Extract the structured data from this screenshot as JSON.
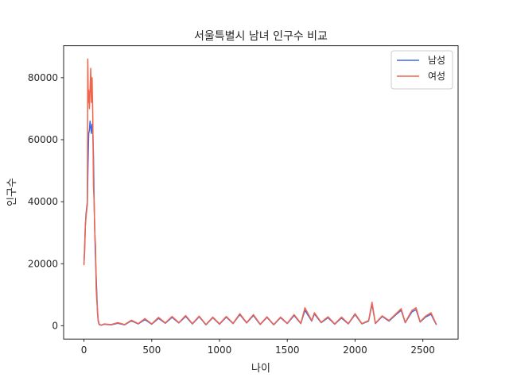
{
  "chart_data": {
    "type": "line",
    "title": "서울특별시 남녀 인구수 비교",
    "xlabel": "나이",
    "ylabel": "인구수",
    "xlim": [
      -150,
      2760
    ],
    "ylim": [
      -4300,
      90300
    ],
    "xticks": [
      0,
      500,
      1000,
      1500,
      2000,
      2500
    ],
    "yticks": [
      0,
      20000,
      40000,
      60000,
      80000
    ],
    "grid": false,
    "legend_position": "top-right",
    "series": [
      {
        "name": "남성",
        "color": "#4169e1",
        "points": [
          [
            0,
            20000
          ],
          [
            5,
            24000
          ],
          [
            10,
            32000
          ],
          [
            15,
            36000
          ],
          [
            20,
            38000
          ],
          [
            25,
            40000
          ],
          [
            30,
            52000
          ],
          [
            35,
            62000
          ],
          [
            40,
            63000
          ],
          [
            45,
            66000
          ],
          [
            50,
            64000
          ],
          [
            55,
            62000
          ],
          [
            60,
            65000
          ],
          [
            65,
            63000
          ],
          [
            70,
            55000
          ],
          [
            75,
            40000
          ],
          [
            80,
            30000
          ],
          [
            85,
            22000
          ],
          [
            90,
            16000
          ],
          [
            95,
            10000
          ],
          [
            100,
            4000
          ],
          [
            105,
            1500
          ],
          [
            110,
            600
          ],
          [
            115,
            300
          ],
          [
            120,
            250
          ],
          [
            130,
            200
          ],
          [
            150,
            500
          ],
          [
            200,
            300
          ],
          [
            250,
            800
          ],
          [
            300,
            300
          ],
          [
            350,
            1600
          ],
          [
            400,
            600
          ],
          [
            450,
            2000
          ],
          [
            500,
            500
          ],
          [
            550,
            2400
          ],
          [
            600,
            800
          ],
          [
            650,
            2700
          ],
          [
            700,
            900
          ],
          [
            750,
            3000
          ],
          [
            800,
            600
          ],
          [
            850,
            2900
          ],
          [
            900,
            300
          ],
          [
            950,
            2600
          ],
          [
            1000,
            500
          ],
          [
            1050,
            2800
          ],
          [
            1100,
            700
          ],
          [
            1150,
            3600
          ],
          [
            1200,
            900
          ],
          [
            1250,
            3300
          ],
          [
            1300,
            400
          ],
          [
            1350,
            2700
          ],
          [
            1400,
            300
          ],
          [
            1450,
            2600
          ],
          [
            1500,
            700
          ],
          [
            1550,
            3300
          ],
          [
            1600,
            700
          ],
          [
            1630,
            5000
          ],
          [
            1680,
            1500
          ],
          [
            1700,
            3800
          ],
          [
            1750,
            1000
          ],
          [
            1800,
            2600
          ],
          [
            1850,
            500
          ],
          [
            1900,
            2500
          ],
          [
            1950,
            600
          ],
          [
            2000,
            3600
          ],
          [
            2050,
            600
          ],
          [
            2100,
            1500
          ],
          [
            2125,
            7000
          ],
          [
            2150,
            700
          ],
          [
            2200,
            3000
          ],
          [
            2250,
            1500
          ],
          [
            2300,
            3500
          ],
          [
            2340,
            5000
          ],
          [
            2370,
            1000
          ],
          [
            2420,
            4500
          ],
          [
            2450,
            5200
          ],
          [
            2480,
            1200
          ],
          [
            2520,
            2800
          ],
          [
            2560,
            3700
          ],
          [
            2600,
            300
          ]
        ]
      },
      {
        "name": "여성",
        "color": "#f4644b",
        "points": [
          [
            0,
            19500
          ],
          [
            5,
            26000
          ],
          [
            10,
            32000
          ],
          [
            15,
            35000
          ],
          [
            20,
            37000
          ],
          [
            25,
            39000
          ],
          [
            28,
            86000
          ],
          [
            32,
            72000
          ],
          [
            35,
            76000
          ],
          [
            40,
            70000
          ],
          [
            45,
            76000
          ],
          [
            50,
            83000
          ],
          [
            55,
            72000
          ],
          [
            60,
            80000
          ],
          [
            65,
            68000
          ],
          [
            70,
            45000
          ],
          [
            75,
            40000
          ],
          [
            80,
            30000
          ],
          [
            85,
            26000
          ],
          [
            90,
            12000
          ],
          [
            95,
            8000
          ],
          [
            100,
            5000
          ],
          [
            105,
            2000
          ],
          [
            110,
            800
          ],
          [
            115,
            500
          ],
          [
            120,
            300
          ],
          [
            130,
            250
          ],
          [
            150,
            600
          ],
          [
            200,
            400
          ],
          [
            250,
            1000
          ],
          [
            300,
            400
          ],
          [
            350,
            1800
          ],
          [
            400,
            700
          ],
          [
            450,
            2300
          ],
          [
            500,
            600
          ],
          [
            550,
            2700
          ],
          [
            600,
            900
          ],
          [
            650,
            3000
          ],
          [
            700,
            1000
          ],
          [
            750,
            3300
          ],
          [
            800,
            700
          ],
          [
            850,
            3100
          ],
          [
            900,
            400
          ],
          [
            950,
            2800
          ],
          [
            1000,
            600
          ],
          [
            1050,
            3000
          ],
          [
            1100,
            800
          ],
          [
            1150,
            3900
          ],
          [
            1200,
            1000
          ],
          [
            1250,
            3600
          ],
          [
            1300,
            500
          ],
          [
            1350,
            2900
          ],
          [
            1400,
            400
          ],
          [
            1450,
            2800
          ],
          [
            1500,
            800
          ],
          [
            1550,
            3600
          ],
          [
            1600,
            800
          ],
          [
            1630,
            5800
          ],
          [
            1680,
            1700
          ],
          [
            1700,
            4200
          ],
          [
            1750,
            1100
          ],
          [
            1800,
            2900
          ],
          [
            1850,
            600
          ],
          [
            1900,
            2800
          ],
          [
            1950,
            700
          ],
          [
            2000,
            3900
          ],
          [
            2050,
            700
          ],
          [
            2100,
            1700
          ],
          [
            2125,
            7600
          ],
          [
            2150,
            800
          ],
          [
            2200,
            3200
          ],
          [
            2250,
            1700
          ],
          [
            2300,
            3800
          ],
          [
            2340,
            5500
          ],
          [
            2370,
            1100
          ],
          [
            2420,
            5000
          ],
          [
            2450,
            5800
          ],
          [
            2480,
            1300
          ],
          [
            2520,
            3100
          ],
          [
            2560,
            4200
          ],
          [
            2600,
            400
          ]
        ]
      }
    ]
  }
}
